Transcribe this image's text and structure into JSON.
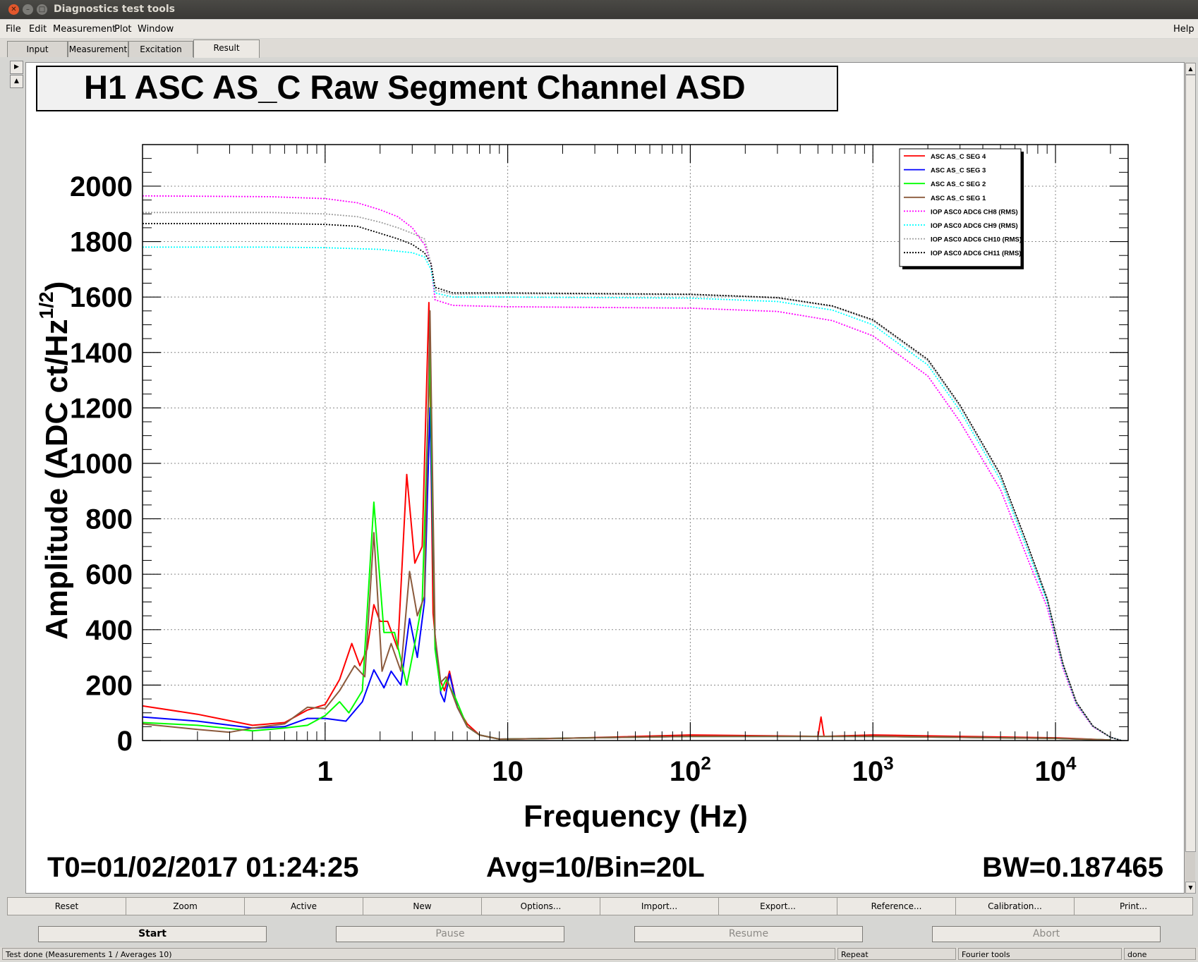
{
  "window": {
    "title": "Diagnostics test tools"
  },
  "menu": {
    "file": "File",
    "edit": "Edit",
    "measurement": "Measurement",
    "plot": "Plot",
    "window": "Window",
    "help": "Help"
  },
  "tabs": {
    "input": "Input",
    "measurement": "Measurement",
    "excitation": "Excitation",
    "result": "Result",
    "active": "Result"
  },
  "chart_data": {
    "type": "line",
    "title": "H1 ASC AS_C Raw Segment Channel ASD",
    "xlabel": "Frequency (Hz)",
    "ylabel": "Amplitude (ADC ct/Hz",
    "ylabel_sup": "1/2",
    "ylabel_close": ")",
    "xscale": "log",
    "xlim": [
      0.1,
      25000
    ],
    "ylim": [
      0,
      2150
    ],
    "grid": true,
    "legend_placement": "top-right",
    "x_ticks": [
      {
        "value": 1,
        "label": "1"
      },
      {
        "value": 10,
        "label": "10"
      },
      {
        "value": 100,
        "label": "10",
        "sup": "2"
      },
      {
        "value": 1000,
        "label": "10",
        "sup": "3"
      },
      {
        "value": 10000,
        "label": "10",
        "sup": "4"
      }
    ],
    "y_ticks": [
      0,
      200,
      400,
      600,
      800,
      1000,
      1200,
      1400,
      1600,
      1800,
      2000
    ],
    "series": [
      {
        "name": "ASC AS_C SEG 4",
        "color": "#ff0000",
        "style": "solid",
        "points": [
          [
            0.1,
            125
          ],
          [
            0.2,
            95
          ],
          [
            0.4,
            55
          ],
          [
            0.6,
            65
          ],
          [
            0.8,
            110
          ],
          [
            1,
            130
          ],
          [
            1.2,
            220
          ],
          [
            1.4,
            350
          ],
          [
            1.55,
            270
          ],
          [
            1.7,
            330
          ],
          [
            1.85,
            490
          ],
          [
            2,
            430
          ],
          [
            2.2,
            430
          ],
          [
            2.5,
            330
          ],
          [
            2.8,
            960
          ],
          [
            3.1,
            640
          ],
          [
            3.4,
            700
          ],
          [
            3.7,
            1580
          ],
          [
            3.9,
            460
          ],
          [
            4.2,
            230
          ],
          [
            4.5,
            180
          ],
          [
            4.8,
            250
          ],
          [
            5.3,
            120
          ],
          [
            6,
            60
          ],
          [
            7,
            20
          ],
          [
            9,
            5
          ],
          [
            20,
            8
          ],
          [
            100,
            20
          ],
          [
            500,
            15
          ],
          [
            520,
            85
          ],
          [
            540,
            15
          ],
          [
            1000,
            20
          ],
          [
            3000,
            15
          ],
          [
            10000,
            10
          ],
          [
            20000,
            2
          ]
        ]
      },
      {
        "name": "ASC AS_C SEG 3",
        "color": "#0000ff",
        "style": "solid",
        "points": [
          [
            0.1,
            85
          ],
          [
            0.2,
            70
          ],
          [
            0.4,
            45
          ],
          [
            0.6,
            50
          ],
          [
            0.8,
            80
          ],
          [
            1,
            80
          ],
          [
            1.3,
            70
          ],
          [
            1.6,
            140
          ],
          [
            1.85,
            255
          ],
          [
            2.1,
            190
          ],
          [
            2.3,
            250
          ],
          [
            2.6,
            200
          ],
          [
            2.9,
            440
          ],
          [
            3.2,
            300
          ],
          [
            3.5,
            500
          ],
          [
            3.75,
            1200
          ],
          [
            4,
            360
          ],
          [
            4.3,
            170
          ],
          [
            4.5,
            140
          ],
          [
            4.8,
            240
          ],
          [
            5.3,
            120
          ],
          [
            6,
            50
          ],
          [
            7,
            20
          ],
          [
            9,
            5
          ],
          [
            100,
            15
          ],
          [
            1000,
            15
          ],
          [
            10000,
            8
          ],
          [
            20000,
            2
          ]
        ]
      },
      {
        "name": "ASC AS_C SEG 2",
        "color": "#00ff00",
        "style": "solid",
        "points": [
          [
            0.1,
            65
          ],
          [
            0.2,
            55
          ],
          [
            0.4,
            35
          ],
          [
            0.6,
            45
          ],
          [
            0.8,
            55
          ],
          [
            1,
            90
          ],
          [
            1.2,
            140
          ],
          [
            1.35,
            100
          ],
          [
            1.6,
            180
          ],
          [
            1.85,
            860
          ],
          [
            2.1,
            390
          ],
          [
            2.4,
            390
          ],
          [
            2.8,
            200
          ],
          [
            3.1,
            350
          ],
          [
            3.4,
            500
          ],
          [
            3.75,
            1400
          ],
          [
            4,
            330
          ],
          [
            4.3,
            180
          ],
          [
            4.6,
            220
          ],
          [
            5.2,
            150
          ],
          [
            6,
            50
          ],
          [
            7,
            20
          ],
          [
            9,
            5
          ],
          [
            100,
            15
          ],
          [
            1000,
            15
          ],
          [
            10000,
            8
          ],
          [
            20000,
            2
          ]
        ]
      },
      {
        "name": "ASC AS_C SEG 1",
        "color": "#8b5a3c",
        "style": "solid",
        "points": [
          [
            0.1,
            60
          ],
          [
            0.2,
            40
          ],
          [
            0.3,
            30
          ],
          [
            0.4,
            45
          ],
          [
            0.6,
            60
          ],
          [
            0.8,
            120
          ],
          [
            1,
            115
          ],
          [
            1.2,
            180
          ],
          [
            1.45,
            270
          ],
          [
            1.65,
            230
          ],
          [
            1.85,
            750
          ],
          [
            2.05,
            250
          ],
          [
            2.3,
            350
          ],
          [
            2.6,
            250
          ],
          [
            2.9,
            610
          ],
          [
            3.2,
            450
          ],
          [
            3.5,
            520
          ],
          [
            3.75,
            1550
          ],
          [
            4,
            380
          ],
          [
            4.3,
            210
          ],
          [
            4.6,
            230
          ],
          [
            5.3,
            120
          ],
          [
            6,
            50
          ],
          [
            7,
            20
          ],
          [
            9,
            5
          ],
          [
            100,
            15
          ],
          [
            1000,
            15
          ],
          [
            10000,
            8
          ],
          [
            20000,
            2
          ]
        ]
      },
      {
        "name": "IOP ASC0 ADC6 CH8 (RMS)",
        "color": "#ff00ff",
        "style": "dotted",
        "points": [
          [
            0.1,
            1965
          ],
          [
            0.5,
            1962
          ],
          [
            1,
            1955
          ],
          [
            1.5,
            1940
          ],
          [
            2,
            1915
          ],
          [
            2.5,
            1890
          ],
          [
            3,
            1850
          ],
          [
            3.5,
            1790
          ],
          [
            3.8,
            1720
          ],
          [
            4,
            1590
          ],
          [
            5,
            1570
          ],
          [
            10,
            1565
          ],
          [
            100,
            1560
          ],
          [
            300,
            1548
          ],
          [
            600,
            1515
          ],
          [
            1000,
            1460
          ],
          [
            2000,
            1315
          ],
          [
            3000,
            1150
          ],
          [
            5000,
            905
          ],
          [
            7000,
            660
          ],
          [
            9000,
            480
          ],
          [
            11000,
            260
          ],
          [
            13000,
            130
          ],
          [
            16000,
            50
          ],
          [
            20000,
            12
          ],
          [
            23000,
            0
          ]
        ]
      },
      {
        "name": "IOP ASC0 ADC6 CH9 (RMS)",
        "color": "#00ffff",
        "style": "dotted",
        "points": [
          [
            0.1,
            1780
          ],
          [
            0.5,
            1780
          ],
          [
            1,
            1778
          ],
          [
            2,
            1772
          ],
          [
            3,
            1760
          ],
          [
            3.5,
            1745
          ],
          [
            3.8,
            1700
          ],
          [
            4,
            1615
          ],
          [
            5,
            1600
          ],
          [
            10,
            1600
          ],
          [
            100,
            1596
          ],
          [
            300,
            1584
          ],
          [
            600,
            1553
          ],
          [
            1000,
            1500
          ],
          [
            2000,
            1355
          ],
          [
            3000,
            1190
          ],
          [
            5000,
            940
          ],
          [
            7000,
            690
          ],
          [
            9000,
            500
          ],
          [
            11000,
            270
          ],
          [
            13000,
            135
          ],
          [
            16000,
            52
          ],
          [
            20000,
            12
          ],
          [
            23000,
            0
          ]
        ]
      },
      {
        "name": "IOP ASC0 ADC6 CH10 (RMS)",
        "color": "#a0a0a0",
        "style": "dotted",
        "points": [
          [
            0.1,
            1905
          ],
          [
            0.5,
            1905
          ],
          [
            1,
            1900
          ],
          [
            1.5,
            1890
          ],
          [
            2,
            1870
          ],
          [
            2.5,
            1850
          ],
          [
            3,
            1830
          ],
          [
            3.5,
            1810
          ],
          [
            3.8,
            1720
          ],
          [
            4,
            1625
          ],
          [
            5,
            1610
          ],
          [
            10,
            1612
          ],
          [
            100,
            1608
          ],
          [
            300,
            1596
          ],
          [
            600,
            1566
          ],
          [
            1000,
            1515
          ],
          [
            2000,
            1370
          ],
          [
            3000,
            1205
          ],
          [
            5000,
            955
          ],
          [
            7000,
            705
          ],
          [
            9000,
            510
          ],
          [
            11000,
            275
          ],
          [
            13000,
            138
          ],
          [
            16000,
            53
          ],
          [
            20000,
            12
          ],
          [
            23000,
            0
          ]
        ]
      },
      {
        "name": "IOP ASC0 ADC6 CH11 (RMS)",
        "color": "#000000",
        "style": "dotted",
        "points": [
          [
            0.1,
            1865
          ],
          [
            0.5,
            1865
          ],
          [
            1,
            1862
          ],
          [
            1.5,
            1855
          ],
          [
            2,
            1830
          ],
          [
            2.5,
            1810
          ],
          [
            3,
            1790
          ],
          [
            3.5,
            1760
          ],
          [
            3.8,
            1720
          ],
          [
            4,
            1635
          ],
          [
            5,
            1615
          ],
          [
            10,
            1615
          ],
          [
            100,
            1610
          ],
          [
            300,
            1598
          ],
          [
            600,
            1568
          ],
          [
            1000,
            1518
          ],
          [
            2000,
            1375
          ],
          [
            3000,
            1210
          ],
          [
            5000,
            960
          ],
          [
            7000,
            710
          ],
          [
            9000,
            512
          ],
          [
            11000,
            276
          ],
          [
            13000,
            139
          ],
          [
            16000,
            53
          ],
          [
            20000,
            12
          ],
          [
            23000,
            0
          ]
        ]
      }
    ]
  },
  "info": {
    "t0": "T0=01/02/2017 01:24:25",
    "avg": "Avg=10/Bin=20L",
    "bw": "BW=0.187465"
  },
  "toolbar": {
    "reset": "Reset",
    "zoom": "Zoom",
    "active": "Active",
    "new": "New",
    "options": "Options...",
    "import": "Import...",
    "export": "Export...",
    "reference": "Reference...",
    "calibration": "Calibration...",
    "print": "Print..."
  },
  "controls": {
    "start": "Start",
    "pause": "Pause",
    "resume": "Resume",
    "abort": "Abort"
  },
  "status": {
    "message": "Test done (Measurements 1 / Averages 10)",
    "repeat": "Repeat",
    "tool": "Fourier tools",
    "state": "done"
  }
}
